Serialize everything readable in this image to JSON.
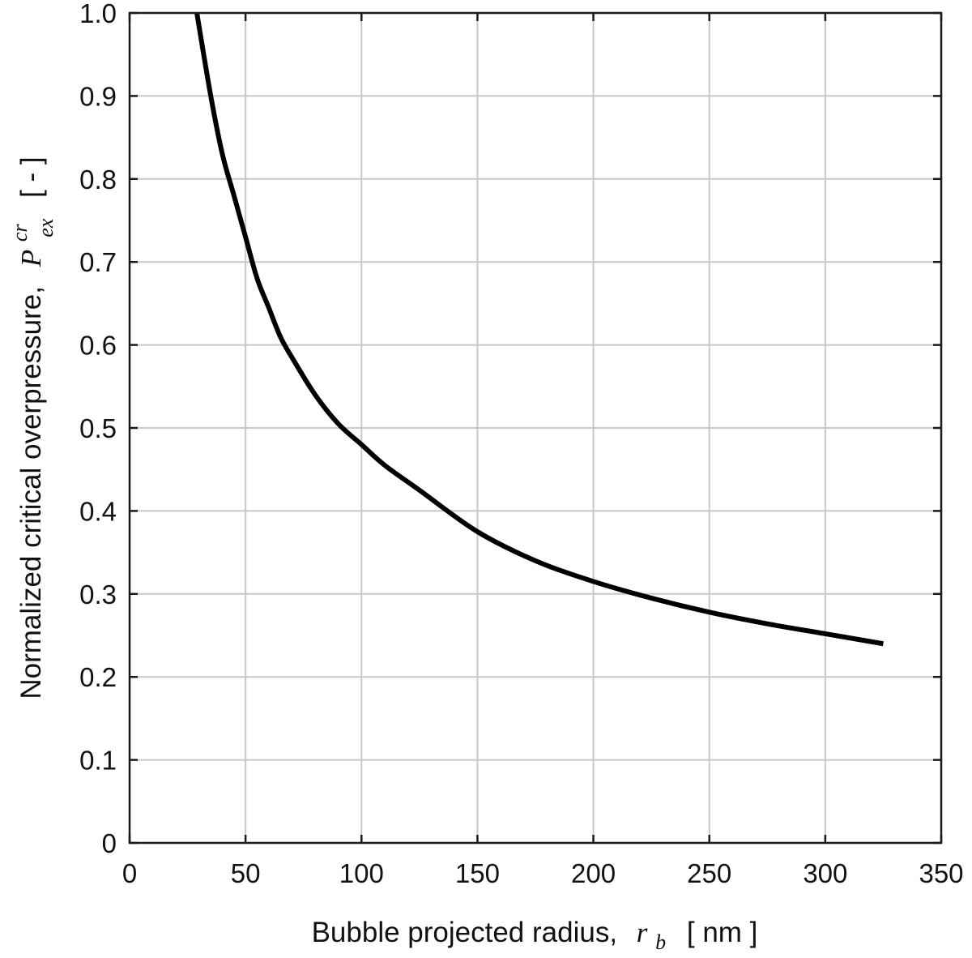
{
  "chart_data": {
    "type": "line",
    "xlabel": {
      "text": "Bubble projected radius,",
      "symbol": "r",
      "symbol_sub": "b",
      "unit": "[ nm ]"
    },
    "ylabel": {
      "text": "Normalized critical overpressure,",
      "symbol": "P",
      "symbol_sup": "cr",
      "symbol_sub": "ex",
      "unit": "[ - ]"
    },
    "xlim": [
      0,
      350
    ],
    "ylim": [
      0,
      1.0
    ],
    "xticks": [
      0,
      50,
      100,
      150,
      200,
      250,
      300,
      350
    ],
    "xtick_labels": [
      "0",
      "50",
      "100",
      "150",
      "200",
      "250",
      "300",
      "350"
    ],
    "yticks": [
      0,
      0.1,
      0.2,
      0.3,
      0.4,
      0.5,
      0.6,
      0.7,
      0.8,
      0.9,
      1.0
    ],
    "ytick_labels": [
      "0",
      "0.1",
      "0.2",
      "0.3",
      "0.4",
      "0.5",
      "0.6",
      "0.7",
      "0.8",
      "0.9",
      "1.0"
    ],
    "grid": true,
    "series": [
      {
        "color": "#000000",
        "x": [
          29,
          35,
          40,
          45,
          50,
          55,
          60,
          65,
          70,
          80,
          90,
          100,
          110,
          125,
          150,
          175,
          200,
          225,
          250,
          275,
          300,
          325
        ],
        "y": [
          1.0,
          0.9,
          0.83,
          0.78,
          0.73,
          0.68,
          0.645,
          0.61,
          0.585,
          0.54,
          0.505,
          0.48,
          0.455,
          0.425,
          0.375,
          0.34,
          0.315,
          0.295,
          0.278,
          0.264,
          0.252,
          0.24
        ]
      }
    ]
  }
}
